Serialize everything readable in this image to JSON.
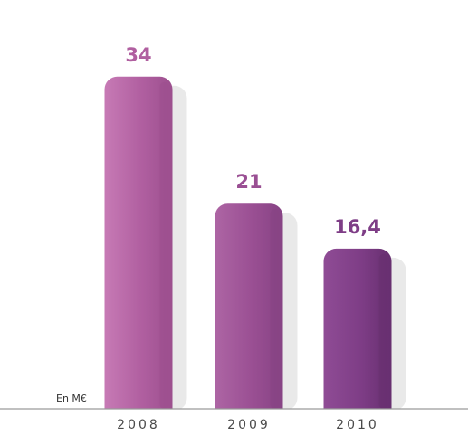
{
  "chart_data": {
    "type": "bar",
    "categories": [
      "2008",
      "2009",
      "2010"
    ],
    "values": [
      34,
      21,
      16.4
    ],
    "value_labels": [
      "34",
      "21",
      "16,4"
    ],
    "unit_label": "En M€",
    "ylim": [
      0,
      40
    ],
    "grid": false,
    "legend": "none",
    "colors": {
      "bars": [
        "#b05fa0",
        "#9a4f93",
        "#7e3d86"
      ],
      "bars_dark": [
        "#9c4f8e",
        "#864384",
        "#672f70"
      ],
      "bars_light": [
        "#c77ab5",
        "#ad65a4",
        "#8f4c95"
      ],
      "labels": [
        "#b05fa0",
        "#9a4f93",
        "#7e3d86"
      ],
      "shadow": "#e9e9e9",
      "axis": "#9a9a9a"
    }
  }
}
